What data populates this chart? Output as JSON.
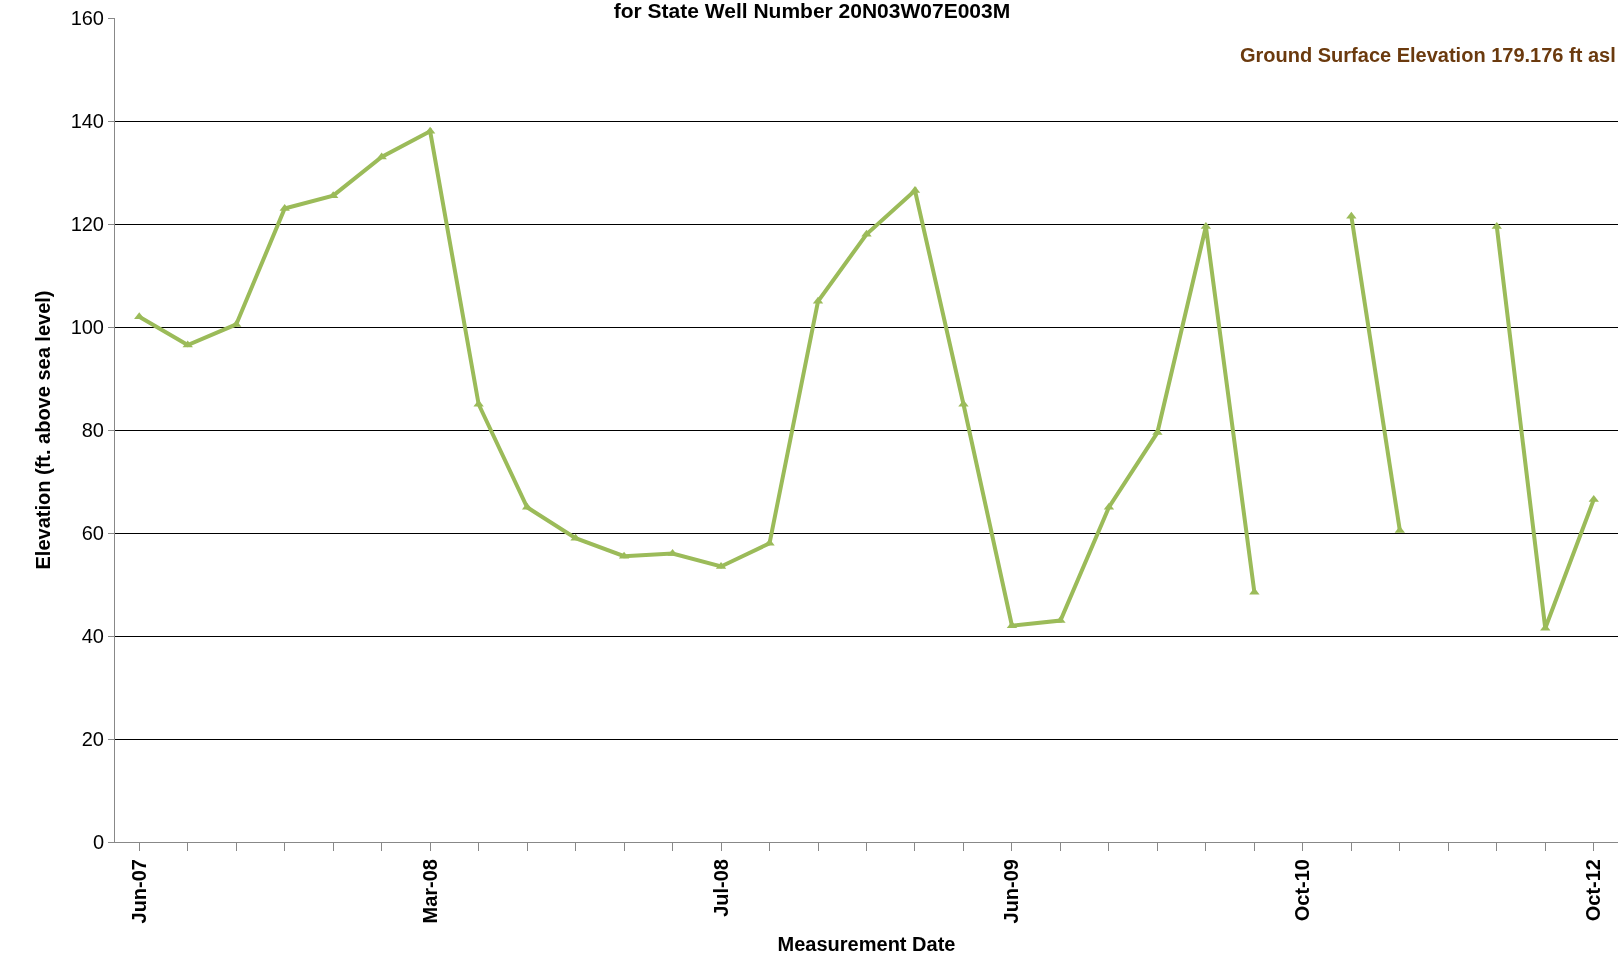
{
  "chart_data": {
    "type": "line",
    "title": "for State Well Number 20N03W07E003M",
    "xlabel": "Measurement Date",
    "ylabel": "Elevation (ft. above sea level)",
    "annotations": [
      "Ground Surface Elevation 179.176 ft asl"
    ],
    "categories": [
      "Jun-07",
      null,
      null,
      null,
      null,
      null,
      "Mar-08",
      null,
      null,
      null,
      null,
      null,
      "Jul-08",
      null,
      null,
      null,
      null,
      null,
      "Jun-09",
      null,
      null,
      null,
      null,
      null,
      "Oct-10",
      null,
      null,
      null,
      null,
      null,
      "Oct-12"
    ],
    "series": [
      {
        "color": "#9bbb59",
        "values": [
          102,
          96.5,
          100.5,
          123,
          125.5,
          133,
          138,
          85,
          65,
          59,
          55.5,
          56,
          53.5,
          58,
          105,
          118,
          126.5,
          85,
          42,
          43,
          65,
          79.5,
          119.5,
          48.5,
          null,
          121.5,
          60.5,
          null,
          119.5,
          41.5,
          66.5
        ]
      }
    ],
    "ylim": [
      0,
      160
    ],
    "yticks": [
      0,
      20,
      40,
      60,
      80,
      100,
      120,
      140,
      160
    ],
    "grid": "y",
    "legend": false,
    "marker": "triangle",
    "line_style": "solid"
  }
}
